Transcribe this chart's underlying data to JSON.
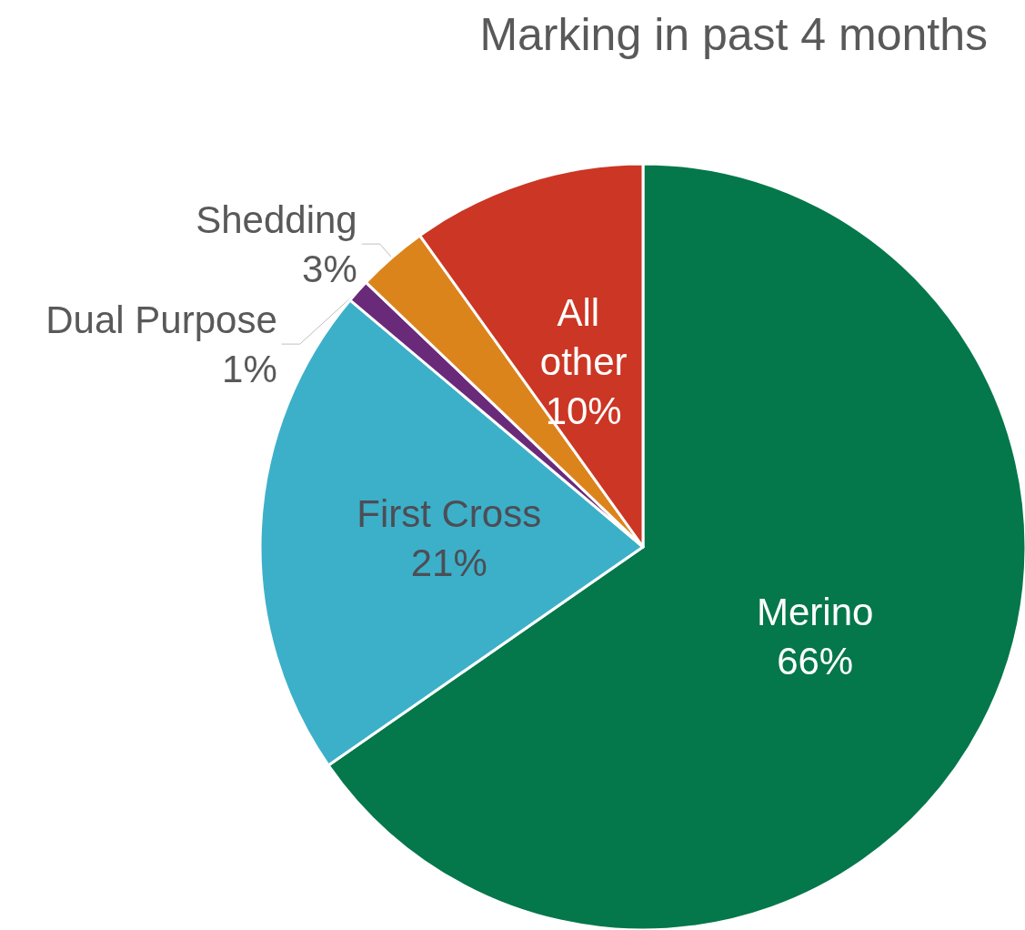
{
  "chart_data": {
    "type": "pie",
    "title": "Marking in past 4 months",
    "categories": [
      "Merino",
      "First Cross",
      "Dual Purpose",
      "Shedding",
      "All other"
    ],
    "values": [
      66,
      21,
      1,
      3,
      10
    ],
    "colors": [
      "#04774b",
      "#3cb0c9",
      "#6a2a7a",
      "#dc841c",
      "#cc3624"
    ],
    "value_labels": [
      "66%",
      "21%",
      "1%",
      "3%",
      "10%"
    ],
    "legend": false
  }
}
